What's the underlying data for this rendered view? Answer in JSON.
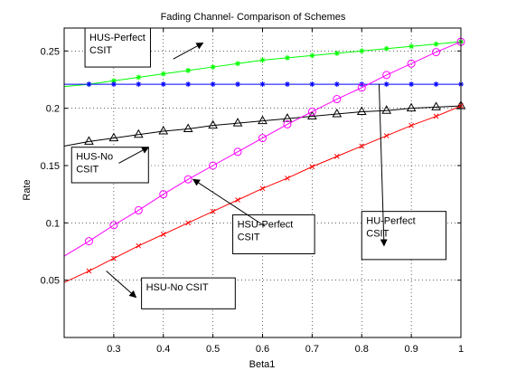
{
  "chart_data": {
    "type": "line",
    "title": "Fading Channel- Comparison of Schemes",
    "xlabel": "Beta1",
    "ylabel": "Rate",
    "xlim": [
      0.2,
      1.0
    ],
    "ylim": [
      0.0,
      0.27
    ],
    "xticks": [
      "0.3",
      "0.4",
      "0.5",
      "0.6",
      "0.7",
      "0.8",
      "0.9",
      "1"
    ],
    "yticks": [
      "0.05",
      "0.1",
      "0.15",
      "0.2",
      "0.25"
    ],
    "xtick_values": [
      0.3,
      0.4,
      0.5,
      0.6,
      0.7,
      0.8,
      0.9,
      1.0
    ],
    "ytick_values": [
      0.05,
      0.1,
      0.15,
      0.2,
      0.25
    ],
    "grid": true,
    "series": [
      {
        "name": "HUS-Perfect CSIT",
        "color": "#00ff00",
        "marker": "star",
        "line_start": [
          0.2,
          0.219
        ],
        "x": [
          0.25,
          0.3,
          0.35,
          0.4,
          0.45,
          0.5,
          0.55,
          0.6,
          0.65,
          0.7,
          0.75,
          0.8,
          0.85,
          0.9,
          0.95,
          1.0
        ],
        "y": [
          0.221,
          0.224,
          0.227,
          0.23,
          0.233,
          0.236,
          0.239,
          0.242,
          0.244,
          0.246,
          0.248,
          0.25,
          0.252,
          0.254,
          0.256,
          0.258
        ]
      },
      {
        "name": "HU-Perfect CSIT",
        "color": "#0000ff",
        "marker": "star",
        "line_start": [
          0.2,
          0.221
        ],
        "x": [
          0.25,
          0.3,
          0.35,
          0.4,
          0.45,
          0.5,
          0.55,
          0.6,
          0.65,
          0.7,
          0.75,
          0.8,
          0.85,
          0.9,
          0.95,
          1.0
        ],
        "y": [
          0.221,
          0.221,
          0.221,
          0.221,
          0.221,
          0.221,
          0.221,
          0.221,
          0.221,
          0.221,
          0.221,
          0.221,
          0.221,
          0.221,
          0.221,
          0.221
        ]
      },
      {
        "name": "HUS-No CSIT",
        "color": "#000000",
        "marker": "triangle",
        "line_start": [
          0.2,
          0.167
        ],
        "x": [
          0.25,
          0.3,
          0.35,
          0.4,
          0.45,
          0.5,
          0.55,
          0.6,
          0.65,
          0.7,
          0.75,
          0.8,
          0.85,
          0.9,
          0.95,
          1.0
        ],
        "y": [
          0.171,
          0.174,
          0.177,
          0.18,
          0.182,
          0.185,
          0.187,
          0.189,
          0.191,
          0.193,
          0.195,
          0.197,
          0.198,
          0.2,
          0.201,
          0.202
        ]
      },
      {
        "name": "HSU-Perfect CSIT",
        "color": "#ff00ff",
        "marker": "circle",
        "line_start": [
          0.2,
          0.071
        ],
        "x": [
          0.25,
          0.3,
          0.35,
          0.4,
          0.45,
          0.5,
          0.55,
          0.6,
          0.65,
          0.7,
          0.75,
          0.8,
          0.85,
          0.9,
          0.95,
          1.0
        ],
        "y": [
          0.084,
          0.098,
          0.111,
          0.125,
          0.138,
          0.15,
          0.162,
          0.174,
          0.186,
          0.197,
          0.208,
          0.218,
          0.229,
          0.239,
          0.249,
          0.258
        ]
      },
      {
        "name": "HSU-No CSIT",
        "color": "#ff0000",
        "marker": "x",
        "line_start": [
          0.2,
          0.048
        ],
        "x": [
          0.25,
          0.3,
          0.35,
          0.4,
          0.45,
          0.5,
          0.55,
          0.6,
          0.65,
          0.7,
          0.75,
          0.8,
          0.85,
          0.9,
          0.95,
          1.0
        ],
        "y": [
          0.058,
          0.069,
          0.08,
          0.09,
          0.1,
          0.11,
          0.12,
          0.13,
          0.139,
          0.149,
          0.158,
          0.167,
          0.176,
          0.185,
          0.193,
          0.202
        ]
      }
    ],
    "annotations": [
      {
        "lines": [
          "HUS-Perfect",
          "CSIT"
        ],
        "box_x": 0.242,
        "box_y": 0.27,
        "box_x2": 0.374,
        "box_y2": 0.236,
        "arrow_from": [
          0.314,
          0.245
        ],
        "arrow_to": [
          0.248,
          0.257
        ],
        "arrow_head": [
          0.48,
          0.257
        ],
        "arrow_tail": [
          0.42,
          0.243
        ]
      },
      {
        "lines": [
          "HUS-No",
          "CSIT"
        ],
        "box_x": 0.215,
        "box_y": 0.166,
        "box_x2": 0.37,
        "box_y2": 0.135,
        "arrow_tail": [
          0.31,
          0.152
        ],
        "arrow_head": [
          0.37,
          0.166
        ]
      },
      {
        "lines": [
          "HSU-Perfect",
          "CSIT"
        ],
        "box_x": 0.54,
        "box_y": 0.107,
        "box_x2": 0.705,
        "box_y2": 0.073,
        "arrow_tail": [
          0.605,
          0.097
        ],
        "arrow_head": [
          0.46,
          0.138
        ]
      },
      {
        "lines": [
          "HU-Perfect",
          "CSIT"
        ],
        "box_x": 0.8,
        "box_y": 0.11,
        "box_x2": 0.97,
        "box_y2": 0.068,
        "arrow_tail": [
          0.835,
          0.221
        ],
        "arrow_head": [
          0.845,
          0.08
        ]
      },
      {
        "lines": [
          "HSU-No CSIT"
        ],
        "box_x": 0.356,
        "box_y": 0.052,
        "box_x2": 0.545,
        "box_y2": 0.025,
        "arrow_tail": [
          0.285,
          0.058
        ],
        "arrow_head": [
          0.345,
          0.035
        ]
      }
    ]
  }
}
